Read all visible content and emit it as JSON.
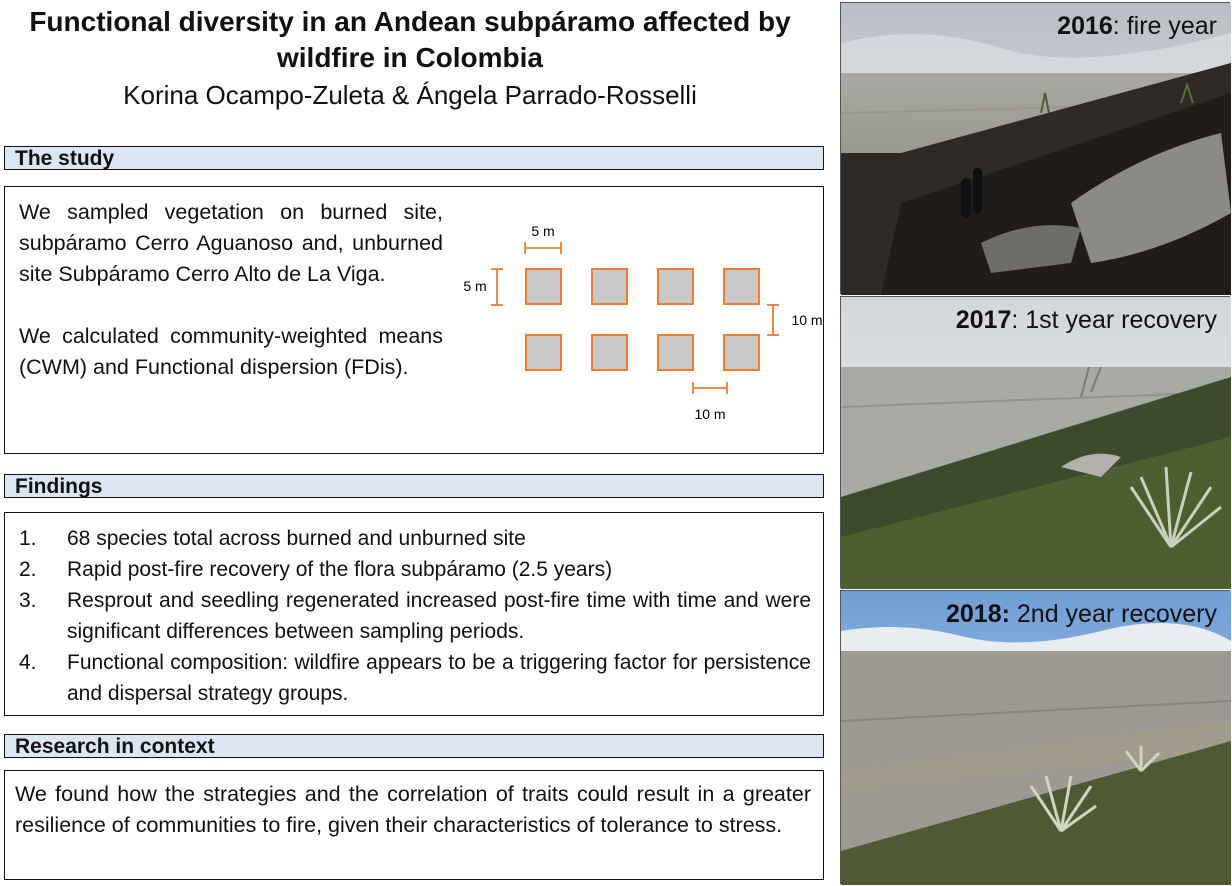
{
  "header": {
    "title": "Functional diversity in an Andean subpáramo affected by wildfire in Colombia",
    "authors": "Korina Ocampo-Zuleta & Ángela Parrado-Rosselli"
  },
  "study": {
    "heading": "The study",
    "paragraph1": "We sampled vegetation on burned site, subpáramo Cerro Aguanoso and, unburned site Subpáramo Cerro Alto de La Viga.",
    "paragraph2": "We calculated community-weighted means (CWM) and Functional dispersion (FDis).",
    "diagram": {
      "plot_width_label": "5 m",
      "plot_height_label": "5 m",
      "row_gap_label": "10 m",
      "column_gap_label": "10 m",
      "rows": 2,
      "columns": 4,
      "plot_color": "#c8c8c8",
      "border_color": "#ed7d31"
    }
  },
  "findings": {
    "heading": "Findings",
    "items": [
      {
        "num": "1.",
        "text": "68 species total across burned and unburned site"
      },
      {
        "num": "2.",
        "text": "Rapid post-fire recovery of the flora subpáramo (2.5 years)"
      },
      {
        "num": "3.",
        "text": "Resprout and seedling regenerated increased post-fire time with time and were significant differences between sampling periods."
      },
      {
        "num": "4.",
        "text": "Functional composition: wildfire appears to be a triggering factor for persistence and dispersal strategy groups."
      }
    ]
  },
  "context": {
    "heading": "Research in context",
    "text": "We found how the strategies and the correlation of traits could result in a greater resilience of communities to fire, given their characteristics of tolerance to stress."
  },
  "photos": [
    {
      "year": "2016",
      "label": ": fire year"
    },
    {
      "year": "2017",
      "label": ": 1st year recovery"
    },
    {
      "year": "2018:",
      "label": " 2nd year recovery"
    }
  ],
  "colors": {
    "section_bar": "#dce6f2",
    "accent_orange": "#ed7d31"
  }
}
